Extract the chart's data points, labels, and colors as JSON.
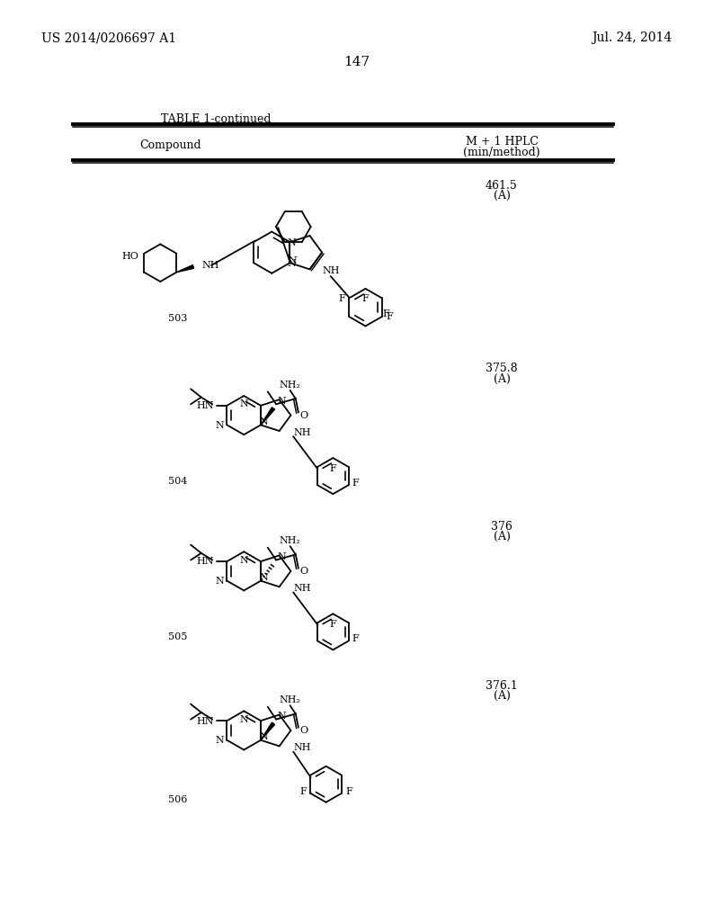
{
  "background_color": "#ffffff",
  "page_number": "147",
  "top_left_text": "US 2014/0206697 A1",
  "top_right_text": "Jul. 24, 2014",
  "table_title": "TABLE 1-continued",
  "col1_header": "Compound",
  "col2_header_line1": "M + 1 HPLC",
  "col2_header_line2": "(min/method)",
  "rows": [
    {
      "number": "503",
      "val1": "461.5",
      "val2": "(A)"
    },
    {
      "number": "504",
      "val1": "375.8",
      "val2": "(A)"
    },
    {
      "number": "505",
      "val1": "376",
      "val2": "(A)"
    },
    {
      "number": "506",
      "val1": "376.1",
      "val2": "(A)"
    }
  ]
}
